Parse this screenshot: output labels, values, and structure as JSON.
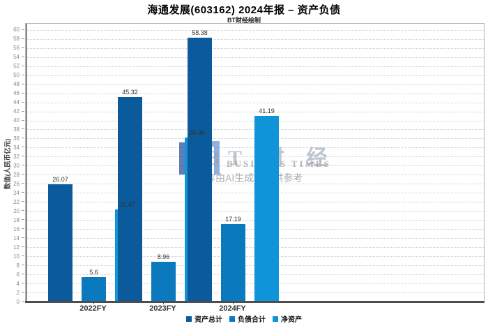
{
  "title": "海通发展(603162) 2024年报 – 资产负债",
  "subtitle": "BT财经绘制",
  "watermark": {
    "brand_cn": "BT 财 经",
    "brand_en": "BUSINESS TIMES",
    "disclaimer": "内容由AI生成，仅供参考"
  },
  "chart_data": {
    "type": "bar",
    "title": "海通发展(603162) 2024年报 – 资产负债",
    "subtitle": "BT财经绘制",
    "categories": [
      "2022FY",
      "2023FY",
      "2024FY"
    ],
    "series": [
      {
        "name": "资产总计",
        "color": "#0b5a9c",
        "values": [
          26.07,
          45.32,
          58.38
        ]
      },
      {
        "name": "负债合计",
        "color": "#0a79bd",
        "values": [
          5.6,
          8.96,
          17.19
        ]
      },
      {
        "name": "净资产",
        "color": "#0f93d9",
        "values": [
          20.47,
          36.36,
          41.19
        ]
      }
    ],
    "ylabel": "数值(人民币亿元)",
    "ylim": [
      0,
      61.5
    ],
    "ytick_step": 2,
    "ytick_max": 60,
    "grid": true,
    "legend_position": "bottom"
  }
}
